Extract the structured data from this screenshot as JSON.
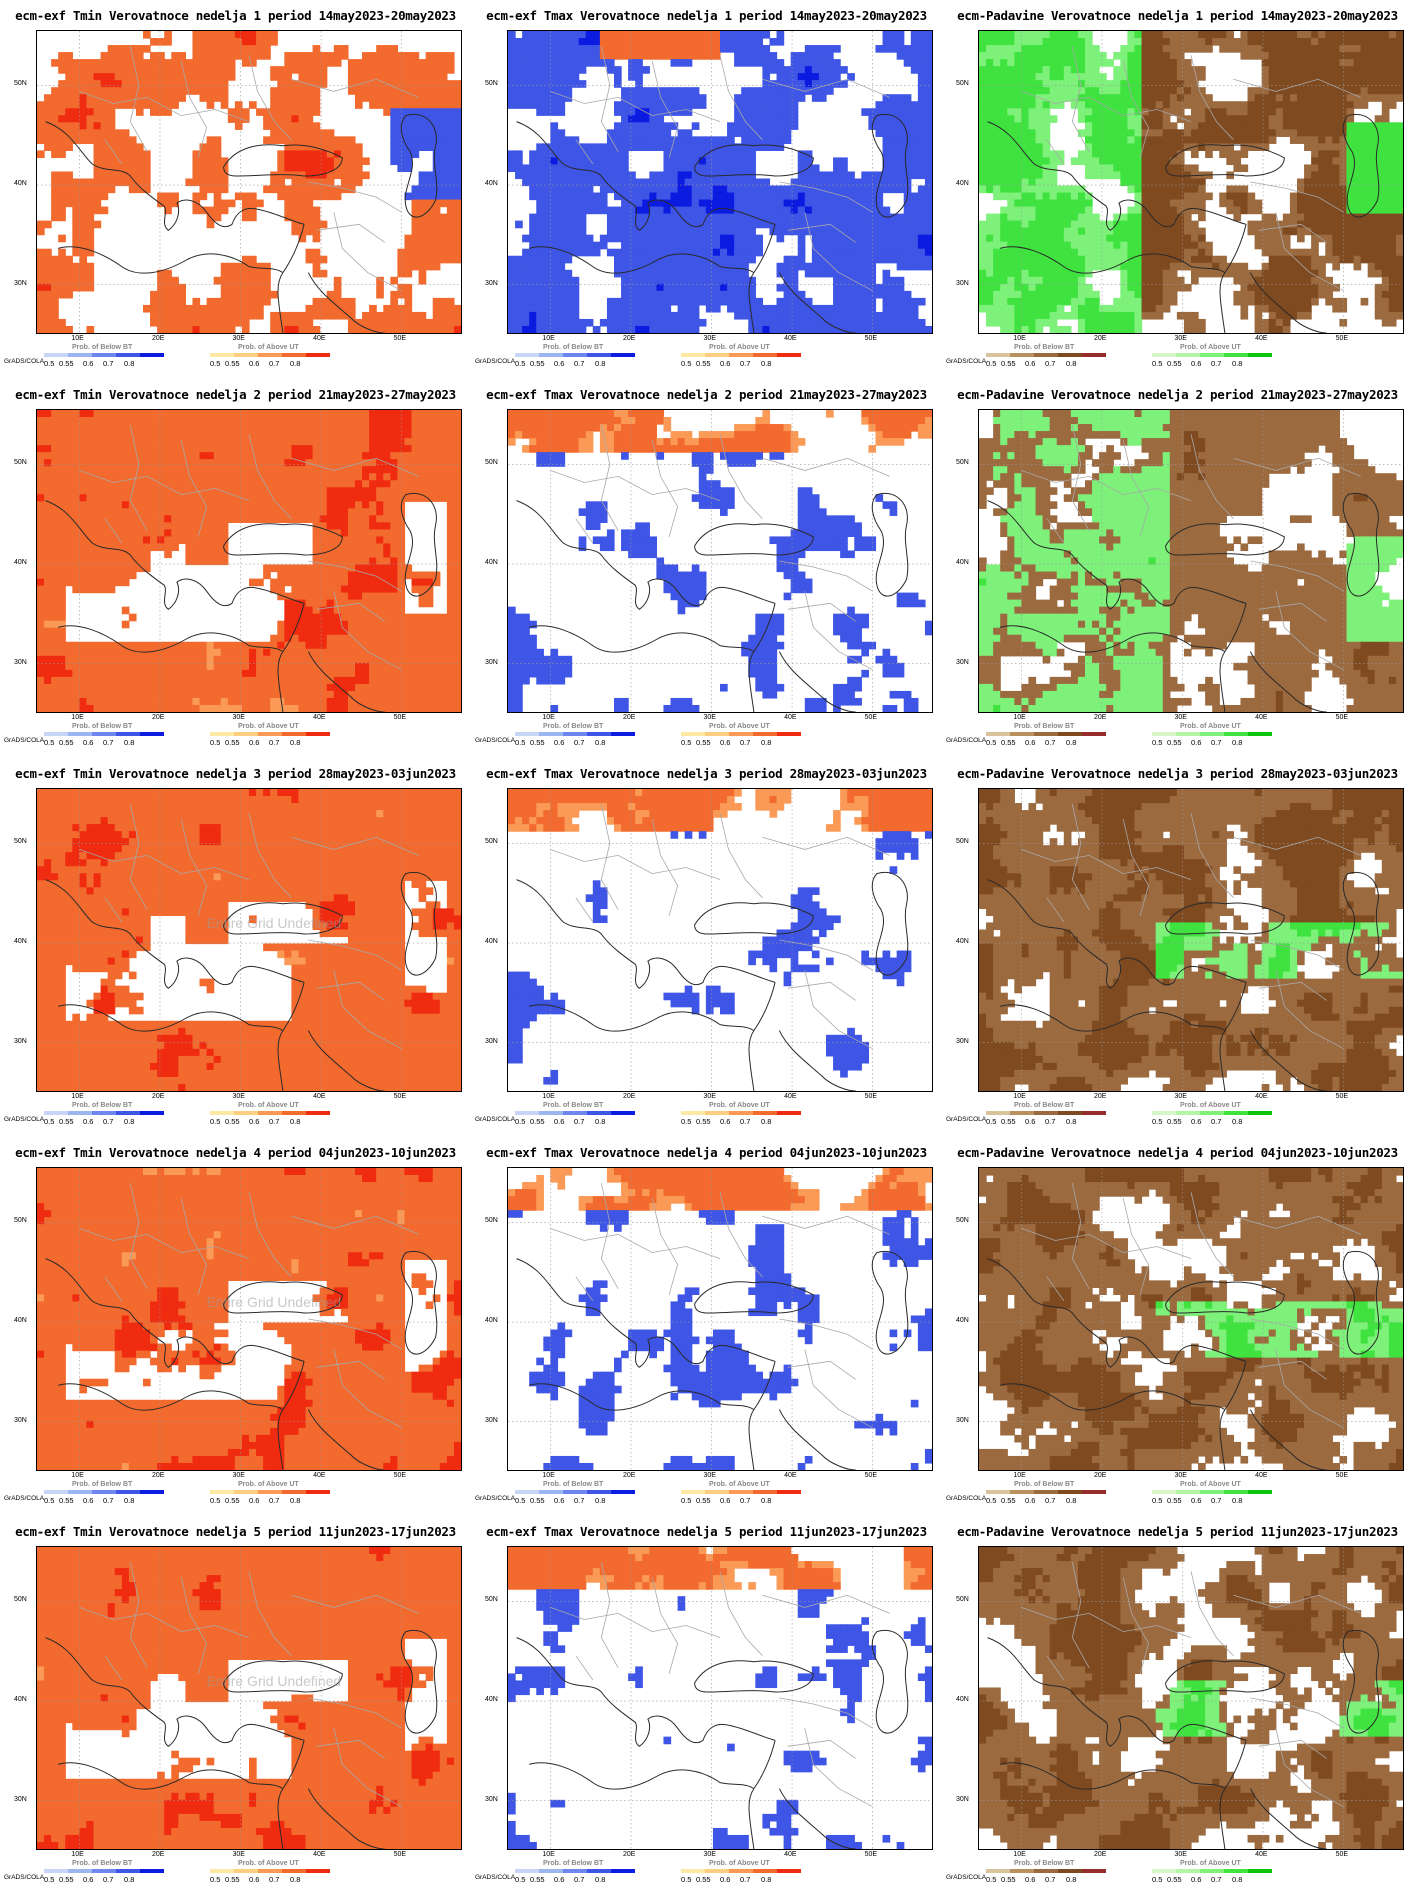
{
  "colors": {
    "warm": [
      "#fde9a3",
      "#fccf80",
      "#fa9a56",
      "#f26a2e",
      "#ef2b10"
    ],
    "cold": [
      "#c7d6f7",
      "#9cb6f2",
      "#6f86ee",
      "#3e55e6",
      "#0b1be0"
    ],
    "dry": [
      "#d8c39c",
      "#b9915f",
      "#9c6a3f",
      "#7f4a20",
      "#962b2b"
    ],
    "wet": [
      "#d7f6c8",
      "#b3f5a4",
      "#7ef17a",
      "#3fe23f",
      "#0cc40c"
    ]
  },
  "legend": {
    "below_title": "Prob. of Below BT",
    "above_title": "Prob. of Above UT",
    "ticks": [
      "0.5",
      "0.55",
      "0.6",
      "0.7",
      "0.8"
    ],
    "credit": "GrADS/COLA"
  },
  "axes": {
    "lat_labels": [
      "50N",
      "40N",
      "30N"
    ],
    "lon_labels": [
      "10E",
      "20E",
      "30E",
      "40E",
      "50E"
    ]
  },
  "watermark": "Entire Grid Undefined",
  "rows": [
    {
      "week": 1,
      "panels": [
        {
          "title": "ecm-exf Tmin Verovatnoce nedelja 1 period 14may2023-20may2023",
          "var": "tmin",
          "pattern": "mixed_warm",
          "left_pal": "cold",
          "right_pal": "warm",
          "watermark": false
        },
        {
          "title": "ecm-exf Tmax Verovatnoce nedelja 1 period 14may2023-20may2023",
          "var": "tmax",
          "pattern": "mixed_cold",
          "left_pal": "cold",
          "right_pal": "warm",
          "watermark": false
        },
        {
          "title": "ecm-Padavine Verovatnoce nedelja 1 period 14may2023-20may2023",
          "var": "precip",
          "pattern": "split",
          "left_pal": "dry",
          "right_pal": "wet",
          "watermark": false
        }
      ]
    },
    {
      "week": 2,
      "panels": [
        {
          "title": "ecm-exf Tmin Verovatnoce nedelja 2 period 21may2023-27may2023",
          "var": "tmin",
          "pattern": "full_warm",
          "left_pal": "cold",
          "right_pal": "warm",
          "watermark": false
        },
        {
          "title": "ecm-exf Tmax Verovatnoce nedelja 2 period 21may2023-27may2023",
          "var": "tmax",
          "pattern": "sparse_cold",
          "left_pal": "cold",
          "right_pal": "warm",
          "watermark": false
        },
        {
          "title": "ecm-Padavine Verovatnoce nedelja 2 period 21may2023-27may2023",
          "var": "precip",
          "pattern": "mix_dry_wet",
          "left_pal": "dry",
          "right_pal": "wet",
          "watermark": false
        }
      ]
    },
    {
      "week": 3,
      "panels": [
        {
          "title": "ecm-exf Tmin Verovatnoce nedelja 3 period 28may2023-03jun2023",
          "var": "tmin",
          "pattern": "full_warm",
          "left_pal": "cold",
          "right_pal": "warm",
          "watermark": true
        },
        {
          "title": "ecm-exf Tmax Verovatnoce nedelja 3 period 28may2023-03jun2023",
          "var": "tmax",
          "pattern": "sparse_cold",
          "left_pal": "cold",
          "right_pal": "warm",
          "watermark": false
        },
        {
          "title": "ecm-Padavine Verovatnoce nedelja 3 period 28may2023-03jun2023",
          "var": "precip",
          "pattern": "mostly_dry",
          "left_pal": "dry",
          "right_pal": "wet",
          "watermark": false
        }
      ]
    },
    {
      "week": 4,
      "panels": [
        {
          "title": "ecm-exf Tmin Verovatnoce nedelja 4 period 04jun2023-10jun2023",
          "var": "tmin",
          "pattern": "full_warm",
          "left_pal": "cold",
          "right_pal": "warm",
          "watermark": true
        },
        {
          "title": "ecm-exf Tmax Verovatnoce nedelja 4 period 04jun2023-10jun2023",
          "var": "tmax",
          "pattern": "sparse_cold",
          "left_pal": "cold",
          "right_pal": "warm",
          "watermark": false
        },
        {
          "title": "ecm-Padavine Verovatnoce nedelja 4 period 04jun2023-10jun2023",
          "var": "precip",
          "pattern": "mostly_dry",
          "left_pal": "dry",
          "right_pal": "wet",
          "watermark": false
        }
      ]
    },
    {
      "week": 5,
      "panels": [
        {
          "title": "ecm-exf Tmin Verovatnoce nedelja 5 period 11jun2023-17jun2023",
          "var": "tmin",
          "pattern": "full_warm",
          "left_pal": "cold",
          "right_pal": "warm",
          "watermark": true
        },
        {
          "title": "ecm-exf Tmax Verovatnoce nedelja 5 period 11jun2023-17jun2023",
          "var": "tmax",
          "pattern": "sparse_cold",
          "left_pal": "cold",
          "right_pal": "warm",
          "watermark": false
        },
        {
          "title": "ecm-Padavine Verovatnoce nedelja 5 period 11jun2023-17jun2023",
          "var": "precip",
          "pattern": "mostly_dry",
          "left_pal": "dry",
          "right_pal": "wet",
          "watermark": false
        }
      ]
    }
  ]
}
